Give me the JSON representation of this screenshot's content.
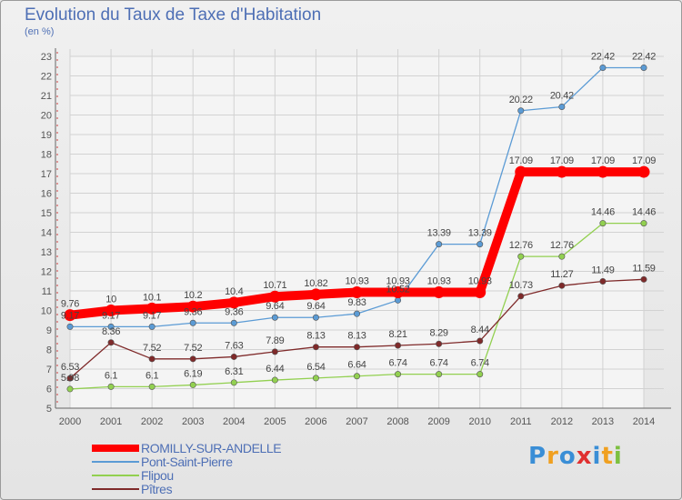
{
  "chart_data": {
    "type": "line",
    "title": "Evolution du Taux de Taxe d'Habitation",
    "subtitle": "(en %)",
    "x": [
      "2000",
      "2001",
      "2002",
      "2003",
      "2004",
      "2005",
      "2006",
      "2007",
      "2008",
      "2009",
      "2010",
      "2011",
      "2012",
      "2013",
      "2014"
    ],
    "ylim": [
      5,
      23
    ],
    "yticks": [
      5,
      6,
      7,
      8,
      9,
      10,
      11,
      12,
      13,
      14,
      15,
      16,
      17,
      18,
      19,
      20,
      21,
      22,
      23
    ],
    "grid": true,
    "legend_position": "bottom-left",
    "series": [
      {
        "name": "ROMILLY-SUR-ANDELLE",
        "color": "#ff0000",
        "values": [
          9.76,
          10,
          10.1,
          10.2,
          10.4,
          10.71,
          10.82,
          10.93,
          10.93,
          10.93,
          10.93,
          17.09,
          17.09,
          17.09,
          17.09
        ],
        "labels": [
          "9.76",
          "10",
          "10.1",
          "10.2",
          "10.4",
          "10.71",
          "10.82",
          "10.93",
          "10.93",
          "10.93",
          "10.93",
          "17.09",
          "17.09",
          "17.09",
          "17.09"
        ]
      },
      {
        "name": "Pont-Saint-Pierre",
        "color": "#5b9bd5",
        "values": [
          9.17,
          9.17,
          9.17,
          9.36,
          9.36,
          9.64,
          9.64,
          9.83,
          10.52,
          13.39,
          13.39,
          20.22,
          20.42,
          22.42,
          22.42
        ],
        "labels": [
          "9.17",
          "9.17",
          "9.17",
          "9.36",
          "9.36",
          "9.64",
          "9.64",
          "9.83",
          "10.52",
          "13.39",
          "13.39",
          "20.22",
          "20.42",
          "22.42",
          "22.42"
        ]
      },
      {
        "name": "Flipou",
        "color": "#92d050",
        "values": [
          5.98,
          6.1,
          6.1,
          6.19,
          6.31,
          6.44,
          6.54,
          6.64,
          6.74,
          6.74,
          6.74,
          12.76,
          12.76,
          14.46,
          14.46
        ],
        "labels": [
          "5.98",
          "6.1",
          "6.1",
          "6.19",
          "6.31",
          "6.44",
          "6.54",
          "6.64",
          "6.74",
          "6.74",
          "6.74",
          "12.76",
          "12.76",
          "14.46",
          "14.46"
        ]
      },
      {
        "name": "Pîtres",
        "color": "#7f2a2a",
        "values": [
          6.53,
          8.36,
          7.52,
          7.52,
          7.63,
          7.89,
          8.13,
          8.13,
          8.21,
          8.29,
          8.44,
          10.73,
          11.27,
          11.49,
          11.59
        ],
        "labels": [
          "6.53",
          "8.36",
          "7.52",
          "7.52",
          "7.63",
          "7.89",
          "8.13",
          "8.13",
          "8.21",
          "8.29",
          "8.44",
          "10.73",
          "11.27",
          "11.49",
          "11.59"
        ]
      }
    ]
  },
  "logo": {
    "letters": [
      "P",
      "r",
      "o",
      "x",
      "i",
      "t",
      "i"
    ],
    "colors": [
      "#3a8ed6",
      "#f0a020",
      "#3a8ed6",
      "#e03030",
      "#3a8ed6",
      "#f0a020",
      "#7cc040"
    ]
  }
}
